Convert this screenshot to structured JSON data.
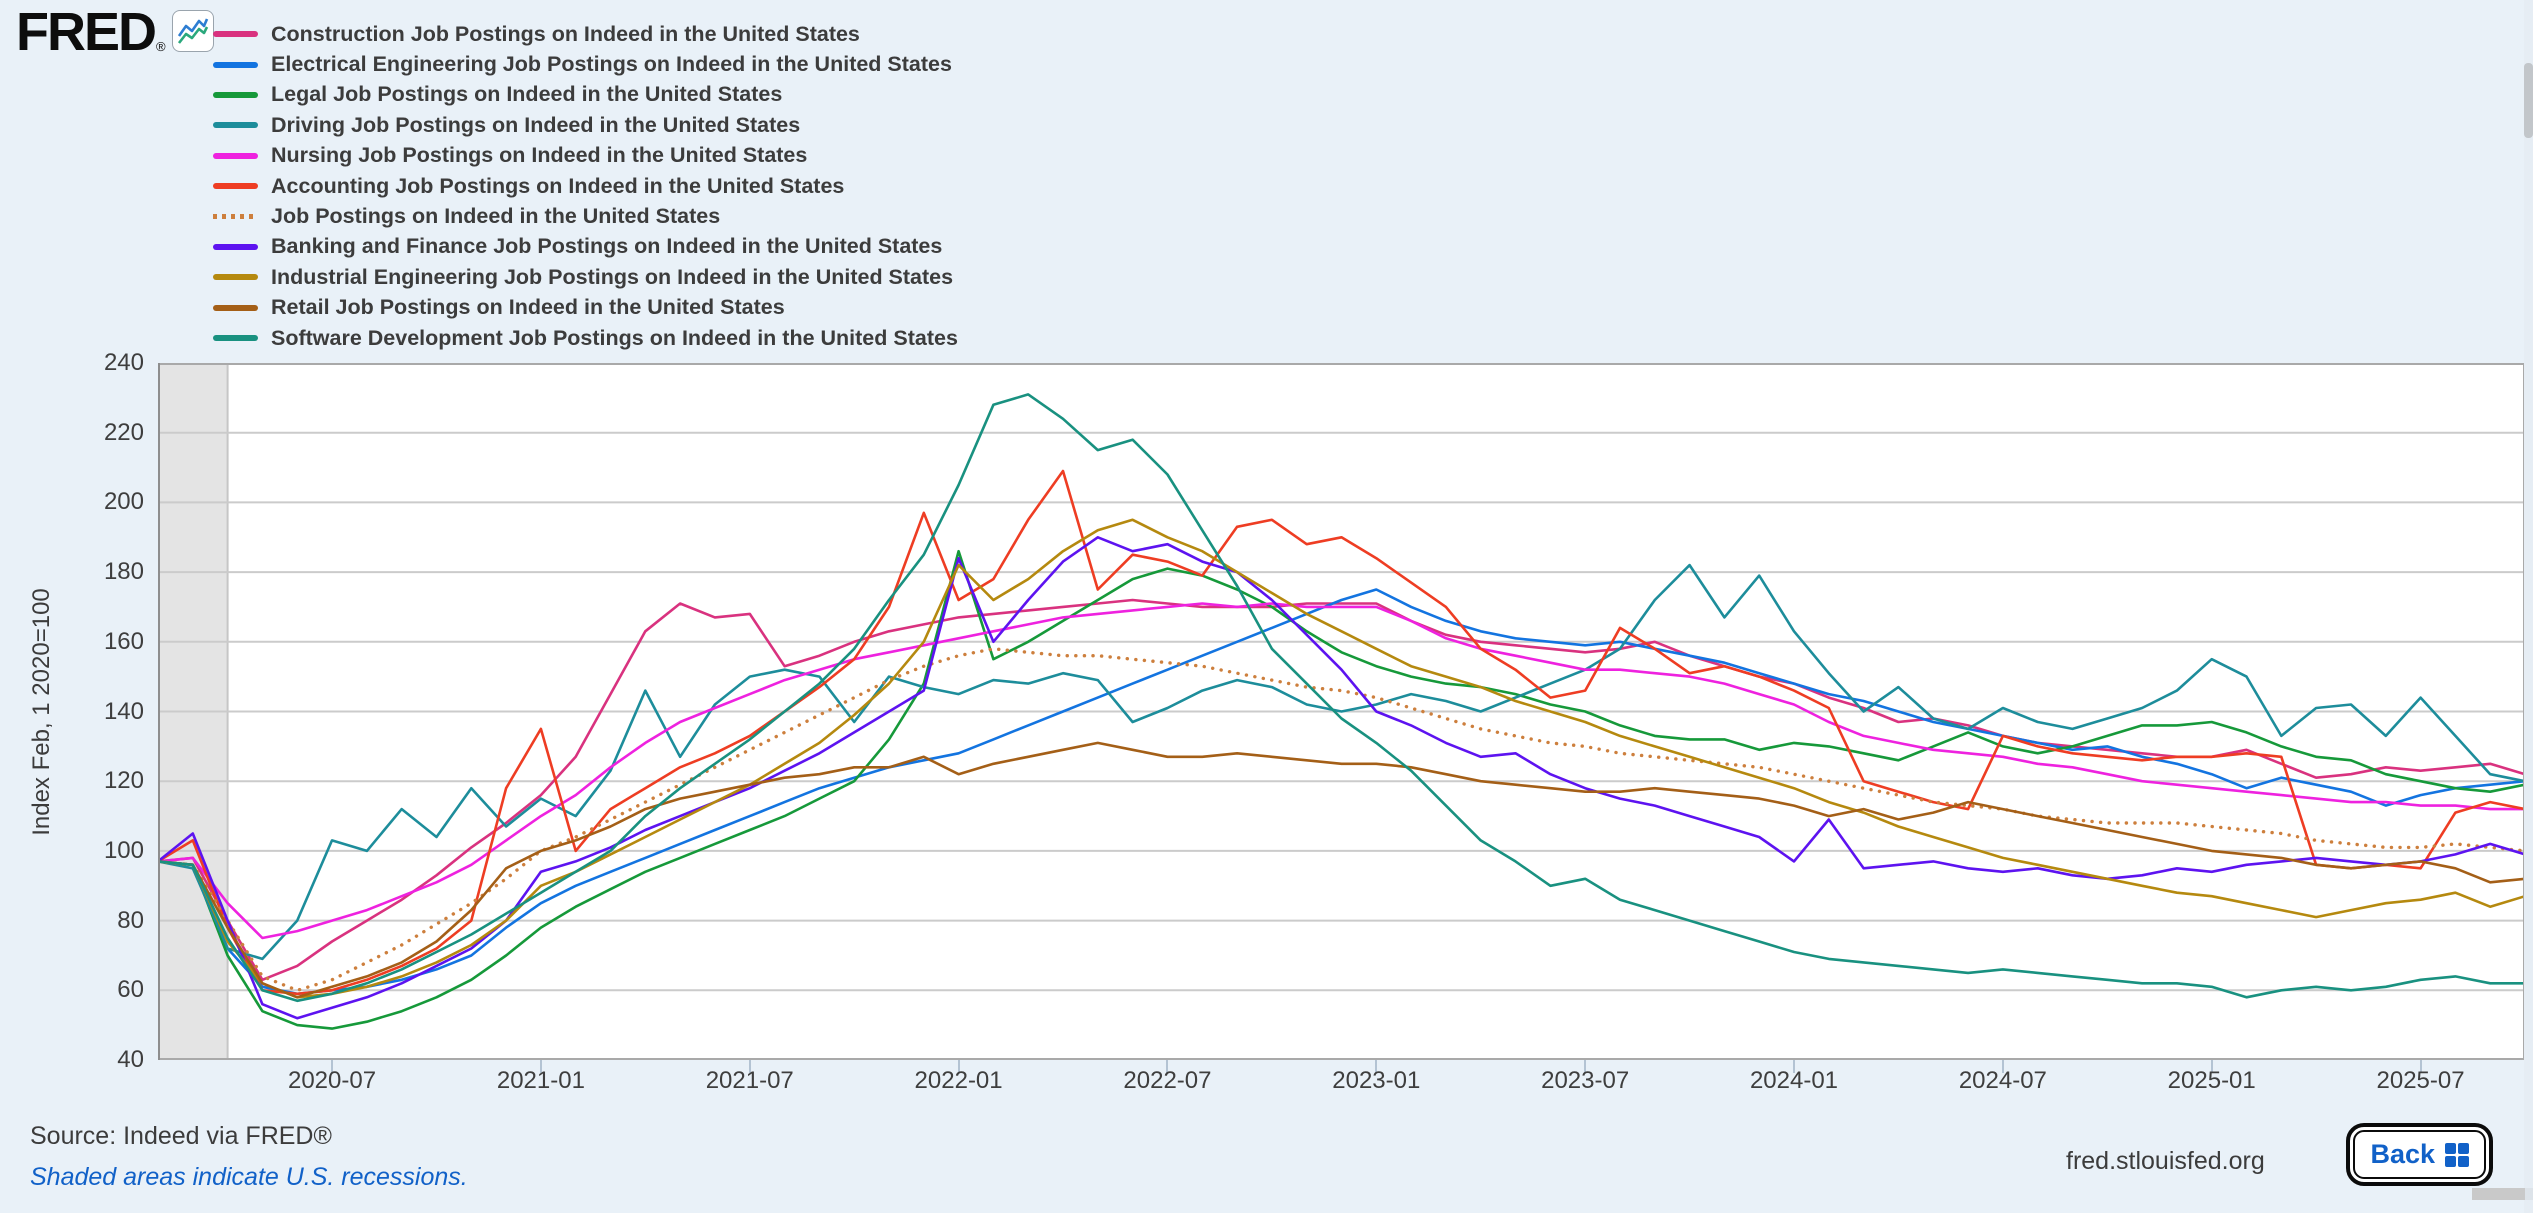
{
  "page": {
    "background": "#e9f1f8",
    "accent_link_color": "#1161c8"
  },
  "logo": {
    "text": "FRED",
    "registered_mark": "®"
  },
  "y_axis": {
    "label": "Index Feb, 1 2020=100",
    "ticks": [
      240,
      220,
      200,
      180,
      160,
      140,
      120,
      100,
      80,
      60,
      40
    ]
  },
  "x_axis": {
    "ticks": [
      {
        "index": 5,
        "label": "2020-07"
      },
      {
        "index": 11,
        "label": "2021-01"
      },
      {
        "index": 17,
        "label": "2021-07"
      },
      {
        "index": 23,
        "label": "2022-01"
      },
      {
        "index": 29,
        "label": "2022-07"
      },
      {
        "index": 35,
        "label": "2023-01"
      },
      {
        "index": 41,
        "label": "2023-07"
      },
      {
        "index": 47,
        "label": "2024-01"
      },
      {
        "index": 53,
        "label": "2024-07"
      },
      {
        "index": 59,
        "label": "2025-01"
      },
      {
        "index": 65,
        "label": "2025-07"
      }
    ]
  },
  "footer": {
    "source": "Source: Indeed via FRED®",
    "recession_note": "Shaded areas indicate U.S. recessions.",
    "site": "fred.stlouisfed.org",
    "back_label": "Back"
  },
  "chart_data": {
    "type": "line",
    "title": "",
    "ylabel": "Index Feb, 1 2020=100",
    "ylim": [
      40,
      240
    ],
    "grid": "horizontal",
    "grid_color": "#cbcbcb",
    "plot_border_color": "#a9a9a9",
    "recession_fill": "#e4e4e4",
    "recession_span": [
      "2020-02",
      "2020-04"
    ],
    "legend_position": "top-left",
    "x": [
      "2020-02",
      "2020-03",
      "2020-04",
      "2020-05",
      "2020-06",
      "2020-07",
      "2020-08",
      "2020-09",
      "2020-10",
      "2020-11",
      "2020-12",
      "2021-01",
      "2021-02",
      "2021-03",
      "2021-04",
      "2021-05",
      "2021-06",
      "2021-07",
      "2021-08",
      "2021-09",
      "2021-10",
      "2021-11",
      "2021-12",
      "2022-01",
      "2022-02",
      "2022-03",
      "2022-04",
      "2022-05",
      "2022-06",
      "2022-07",
      "2022-08",
      "2022-09",
      "2022-10",
      "2022-11",
      "2022-12",
      "2023-01",
      "2023-02",
      "2023-03",
      "2023-04",
      "2023-05",
      "2023-06",
      "2023-07",
      "2023-08",
      "2023-09",
      "2023-10",
      "2023-11",
      "2023-12",
      "2024-01",
      "2024-02",
      "2024-03",
      "2024-04",
      "2024-05",
      "2024-06",
      "2024-07",
      "2024-08",
      "2024-09",
      "2024-10",
      "2024-11",
      "2024-12",
      "2025-01",
      "2025-02",
      "2025-03",
      "2025-04",
      "2025-05",
      "2025-06",
      "2025-07",
      "2025-08",
      "2025-09",
      "2025-10"
    ],
    "series": [
      {
        "key": "construction",
        "name": "Construction Job Postings on Indeed in the United States",
        "color": "#d9327f",
        "dotted": false,
        "values": [
          97,
          98,
          80,
          63,
          67,
          74,
          80,
          86,
          93,
          101,
          108,
          116,
          127,
          145,
          163,
          171,
          167,
          168,
          153,
          156,
          160,
          163,
          165,
          167,
          168,
          169,
          170,
          171,
          172,
          171,
          170,
          170,
          170,
          171,
          171,
          171,
          166,
          162,
          160,
          159,
          158,
          157,
          158,
          160,
          156,
          153,
          150,
          148,
          144,
          141,
          137,
          138,
          136,
          133,
          131,
          130,
          129,
          128,
          127,
          127,
          129,
          125,
          121,
          122,
          124,
          123,
          124,
          125,
          122
        ]
      },
      {
        "key": "electrical",
        "name": "Electrical Engineering Job Postings on Indeed in the United States",
        "color": "#1374e0",
        "dotted": false,
        "values": [
          97,
          96,
          72,
          61,
          59,
          60,
          61,
          63,
          66,
          70,
          78,
          85,
          90,
          94,
          98,
          102,
          106,
          110,
          114,
          118,
          121,
          124,
          126,
          128,
          132,
          136,
          140,
          144,
          148,
          152,
          156,
          160,
          164,
          168,
          172,
          175,
          170,
          166,
          163,
          161,
          160,
          159,
          160,
          158,
          156,
          154,
          151,
          148,
          145,
          143,
          140,
          137,
          135,
          133,
          131,
          129,
          130,
          127,
          125,
          122,
          118,
          121,
          119,
          117,
          113,
          116,
          118,
          119,
          120
        ]
      },
      {
        "key": "legal",
        "name": "Legal Job Postings on Indeed in the United States",
        "color": "#16993a",
        "dotted": false,
        "values": [
          97,
          96,
          70,
          54,
          50,
          49,
          51,
          54,
          58,
          63,
          70,
          78,
          84,
          89,
          94,
          98,
          102,
          106,
          110,
          115,
          120,
          132,
          148,
          186,
          155,
          160,
          166,
          172,
          178,
          181,
          179,
          175,
          170,
          163,
          157,
          153,
          150,
          148,
          147,
          145,
          142,
          140,
          136,
          133,
          132,
          132,
          129,
          131,
          130,
          128,
          126,
          130,
          134,
          130,
          128,
          130,
          133,
          136,
          136,
          137,
          134,
          130,
          127,
          126,
          122,
          120,
          118,
          117,
          119
        ]
      },
      {
        "key": "driving",
        "name": "Driving Job Postings on Indeed in the United States",
        "color": "#1d8d9b",
        "dotted": false,
        "values": [
          97,
          95,
          72,
          69,
          80,
          103,
          100,
          112,
          104,
          118,
          107,
          115,
          110,
          123,
          146,
          127,
          142,
          150,
          152,
          150,
          137,
          150,
          147,
          145,
          149,
          148,
          151,
          149,
          137,
          141,
          146,
          149,
          147,
          142,
          140,
          142,
          145,
          143,
          140,
          144,
          148,
          152,
          158,
          172,
          182,
          167,
          179,
          163,
          151,
          140,
          147,
          138,
          135,
          141,
          137,
          135,
          138,
          141,
          146,
          155,
          150,
          133,
          141,
          142,
          133,
          144,
          133,
          122,
          120
        ]
      },
      {
        "key": "nursing",
        "name": "Nursing Job Postings on Indeed in the United States",
        "color": "#ee22df",
        "dotted": false,
        "values": [
          97,
          98,
          85,
          75,
          77,
          80,
          83,
          87,
          91,
          96,
          103,
          110,
          116,
          124,
          131,
          137,
          141,
          145,
          149,
          152,
          155,
          157,
          159,
          161,
          163,
          165,
          167,
          168,
          169,
          170,
          171,
          170,
          171,
          170,
          170,
          170,
          166,
          161,
          158,
          156,
          154,
          152,
          152,
          151,
          150,
          148,
          145,
          142,
          137,
          133,
          131,
          129,
          128,
          127,
          125,
          124,
          122,
          120,
          119,
          118,
          117,
          116,
          115,
          114,
          114,
          113,
          113,
          112,
          112
        ]
      },
      {
        "key": "accounting",
        "name": "Accounting Job Postings on Indeed in the United States",
        "color": "#ee3d23",
        "dotted": false,
        "values": [
          97,
          103,
          78,
          60,
          59,
          60,
          63,
          67,
          72,
          80,
          118,
          135,
          100,
          112,
          118,
          124,
          128,
          133,
          140,
          147,
          155,
          170,
          197,
          172,
          178,
          195,
          209,
          175,
          185,
          183,
          179,
          193,
          195,
          188,
          190,
          184,
          177,
          170,
          158,
          152,
          144,
          146,
          164,
          158,
          151,
          153,
          150,
          146,
          141,
          120,
          117,
          114,
          112,
          133,
          130,
          128,
          127,
          126,
          127,
          127,
          128,
          127,
          96,
          95,
          96,
          95,
          111,
          114,
          112
        ]
      },
      {
        "key": "aggregate",
        "name": "Job Postings on Indeed in the United States",
        "color": "#cd7f3d",
        "dotted": true,
        "values": [
          97,
          96,
          80,
          64,
          60,
          63,
          68,
          73,
          79,
          85,
          92,
          100,
          104,
          109,
          114,
          119,
          124,
          129,
          134,
          139,
          144,
          149,
          153,
          156,
          158,
          157,
          156,
          156,
          155,
          154,
          153,
          151,
          149,
          147,
          146,
          144,
          141,
          138,
          135,
          133,
          131,
          130,
          128,
          127,
          126,
          125,
          124,
          122,
          120,
          118,
          116,
          114,
          113,
          112,
          110,
          109,
          108,
          108,
          108,
          107,
          106,
          105,
          103,
          102,
          101,
          101,
          102,
          101,
          100
        ]
      },
      {
        "key": "banking",
        "name": "Banking and Finance Job Postings on Indeed in the United States",
        "color": "#5d13f0",
        "dotted": false,
        "values": [
          97,
          105,
          80,
          56,
          52,
          55,
          58,
          62,
          67,
          72,
          80,
          94,
          97,
          101,
          106,
          110,
          114,
          118,
          123,
          128,
          134,
          140,
          146,
          184,
          160,
          172,
          183,
          190,
          186,
          188,
          183,
          180,
          172,
          162,
          152,
          140,
          136,
          131,
          127,
          128,
          122,
          118,
          115,
          113,
          110,
          107,
          104,
          97,
          109,
          95,
          96,
          97,
          95,
          94,
          95,
          93,
          92,
          93,
          95,
          94,
          96,
          97,
          98,
          97,
          96,
          97,
          99,
          102,
          99
        ]
      },
      {
        "key": "industrial",
        "name": "Industrial Engineering Job Postings on Indeed in the United States",
        "color": "#b5890f",
        "dotted": false,
        "values": [
          97,
          96,
          74,
          62,
          58,
          59,
          61,
          64,
          68,
          73,
          80,
          90,
          94,
          99,
          104,
          109,
          114,
          119,
          125,
          131,
          139,
          148,
          160,
          182,
          172,
          178,
          186,
          192,
          195,
          190,
          186,
          180,
          174,
          168,
          163,
          158,
          153,
          150,
          147,
          143,
          140,
          137,
          133,
          130,
          127,
          124,
          121,
          118,
          114,
          111,
          107,
          104,
          101,
          98,
          96,
          94,
          92,
          90,
          88,
          87,
          85,
          83,
          81,
          83,
          85,
          86,
          88,
          84,
          87
        ]
      },
      {
        "key": "retail",
        "name": "Retail Job Postings on Indeed in the United States",
        "color": "#a45f17",
        "dotted": false,
        "values": [
          97,
          96,
          78,
          62,
          58,
          61,
          64,
          68,
          74,
          83,
          95,
          100,
          103,
          107,
          112,
          115,
          117,
          119,
          121,
          122,
          124,
          124,
          127,
          122,
          125,
          127,
          129,
          131,
          129,
          127,
          127,
          128,
          127,
          126,
          125,
          125,
          124,
          122,
          120,
          119,
          118,
          117,
          117,
          118,
          117,
          116,
          115,
          113,
          110,
          112,
          109,
          111,
          114,
          112,
          110,
          108,
          106,
          104,
          102,
          100,
          99,
          98,
          96,
          95,
          96,
          97,
          95,
          91,
          92
        ]
      },
      {
        "key": "software",
        "name": "Software Development Job Postings on Indeed in the United States",
        "color": "#199180",
        "dotted": false,
        "values": [
          97,
          96,
          75,
          60,
          57,
          59,
          62,
          66,
          71,
          76,
          82,
          88,
          94,
          100,
          110,
          118,
          125,
          132,
          140,
          148,
          158,
          172,
          185,
          205,
          228,
          231,
          224,
          215,
          218,
          208,
          192,
          176,
          158,
          148,
          138,
          131,
          123,
          113,
          103,
          97,
          90,
          92,
          86,
          83,
          80,
          77,
          74,
          71,
          69,
          68,
          67,
          66,
          65,
          66,
          65,
          64,
          63,
          62,
          62,
          61,
          58,
          60,
          61,
          60,
          61,
          63,
          64,
          62,
          62
        ]
      }
    ]
  }
}
